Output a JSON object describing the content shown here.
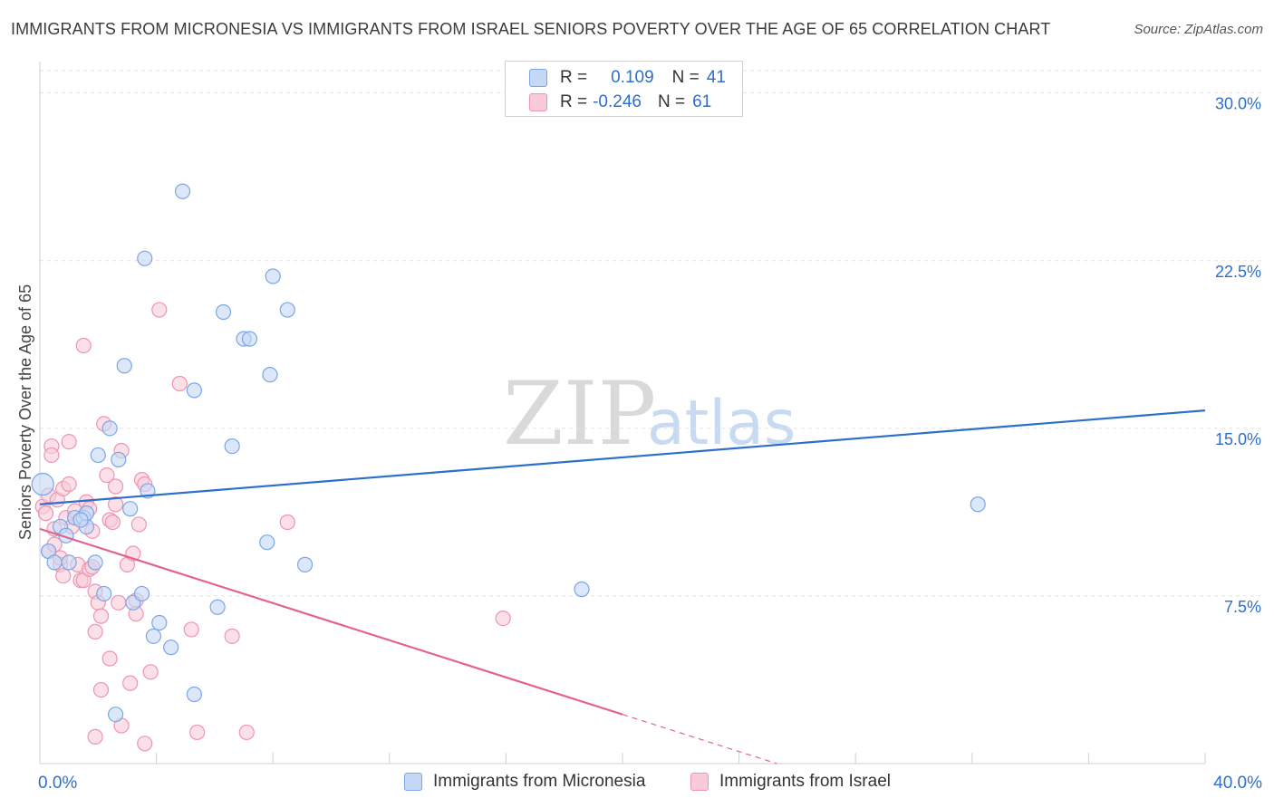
{
  "title": "IMMIGRANTS FROM MICRONESIA VS IMMIGRANTS FROM ISRAEL SENIORS POVERTY OVER THE AGE OF 65 CORRELATION CHART",
  "source": "Source: ZipAtlas.com",
  "watermark": {
    "zip": "ZIP",
    "atlas": "atlas"
  },
  "colors": {
    "blue_fill": "#c5d8f6",
    "blue_stroke": "#7aa6e6",
    "blue_line": "#2d6fca",
    "pink_fill": "#f9cbd9",
    "pink_stroke": "#ee94b1",
    "pink_line": "#e3638e",
    "tick_label": "#2d6fca",
    "grid": "#e2e2e2"
  },
  "stats": [
    {
      "r_label": "R =",
      "r_value": "0.109",
      "n_label": "N =",
      "n_value": "41"
    },
    {
      "r_label": "R =",
      "r_value": "-0.246",
      "n_label": "N =",
      "n_value": "61"
    }
  ],
  "chart_data": {
    "type": "scatter",
    "title": "IMMIGRANTS FROM MICRONESIA VS IMMIGRANTS FROM ISRAEL SENIORS POVERTY OVER THE AGE OF 65 CORRELATION CHART",
    "xlabel": "",
    "ylabel": "Seniors Poverty Over the Age of 65",
    "xlim": [
      0,
      40
    ],
    "ylim": [
      0,
      31
    ],
    "x_tick_labels": [
      "0.0%",
      "40.0%"
    ],
    "y_ticks": [
      7.5,
      15.0,
      22.5,
      30.0
    ],
    "y_tick_labels": [
      "7.5%",
      "15.0%",
      "22.5%",
      "30.0%"
    ],
    "grid": true,
    "legend_position": "bottom",
    "series": [
      {
        "name": "Immigrants from Micronesia",
        "color": "#7aa6e6",
        "trend": {
          "x": [
            0,
            40
          ],
          "y": [
            11.6,
            15.8
          ]
        },
        "points": [
          [
            0.1,
            12.5
          ],
          [
            0.3,
            9.5
          ],
          [
            0.5,
            9.0
          ],
          [
            0.7,
            10.6
          ],
          [
            0.9,
            10.2
          ],
          [
            1.0,
            9.0
          ],
          [
            1.2,
            11.0
          ],
          [
            1.5,
            11.0
          ],
          [
            1.6,
            10.6
          ],
          [
            1.6,
            11.2
          ],
          [
            1.9,
            9.0
          ],
          [
            2.0,
            13.8
          ],
          [
            2.2,
            7.6
          ],
          [
            2.4,
            15.0
          ],
          [
            2.6,
            2.2
          ],
          [
            2.7,
            13.6
          ],
          [
            2.9,
            17.8
          ],
          [
            3.1,
            11.4
          ],
          [
            3.2,
            7.2
          ],
          [
            3.5,
            7.6
          ],
          [
            3.7,
            12.2
          ],
          [
            3.6,
            22.6
          ],
          [
            3.9,
            5.7
          ],
          [
            4.1,
            6.3
          ],
          [
            4.5,
            5.2
          ],
          [
            4.9,
            25.6
          ],
          [
            5.3,
            16.7
          ],
          [
            5.3,
            3.1
          ],
          [
            6.1,
            7.0
          ],
          [
            6.3,
            20.2
          ],
          [
            6.6,
            14.2
          ],
          [
            7.0,
            19.0
          ],
          [
            7.2,
            19.0
          ],
          [
            7.8,
            9.9
          ],
          [
            7.9,
            17.4
          ],
          [
            8.0,
            21.8
          ],
          [
            8.5,
            20.3
          ],
          [
            9.1,
            8.9
          ],
          [
            18.6,
            7.8
          ],
          [
            32.2,
            11.6
          ],
          [
            1.4,
            10.9
          ]
        ]
      },
      {
        "name": "Immigrants from Israel",
        "color": "#ee94b1",
        "trend": {
          "x": [
            0,
            20.0
          ],
          "y": [
            10.5,
            2.2
          ]
        },
        "trend_dashed": {
          "x": [
            20.0,
            25.3
          ],
          "y": [
            2.2,
            0.0
          ]
        },
        "points": [
          [
            0.1,
            11.5
          ],
          [
            0.2,
            11.2
          ],
          [
            0.3,
            12.0
          ],
          [
            0.3,
            9.5
          ],
          [
            0.4,
            14.2
          ],
          [
            0.4,
            13.8
          ],
          [
            0.5,
            10.5
          ],
          [
            0.5,
            9.8
          ],
          [
            0.6,
            11.8
          ],
          [
            0.7,
            8.9
          ],
          [
            0.7,
            9.2
          ],
          [
            0.8,
            12.3
          ],
          [
            0.8,
            8.4
          ],
          [
            0.9,
            11.0
          ],
          [
            1.0,
            12.5
          ],
          [
            1.0,
            14.4
          ],
          [
            1.1,
            10.6
          ],
          [
            1.2,
            11.3
          ],
          [
            1.3,
            8.9
          ],
          [
            1.4,
            8.2
          ],
          [
            1.5,
            8.2
          ],
          [
            1.5,
            18.7
          ],
          [
            1.6,
            11.7
          ],
          [
            1.7,
            11.4
          ],
          [
            1.7,
            8.7
          ],
          [
            1.8,
            10.4
          ],
          [
            1.8,
            8.8
          ],
          [
            1.9,
            7.7
          ],
          [
            1.9,
            5.9
          ],
          [
            1.9,
            1.2
          ],
          [
            2.0,
            7.2
          ],
          [
            2.1,
            6.6
          ],
          [
            2.1,
            3.3
          ],
          [
            2.2,
            15.2
          ],
          [
            2.3,
            12.9
          ],
          [
            2.4,
            10.9
          ],
          [
            2.4,
            4.7
          ],
          [
            2.5,
            10.8
          ],
          [
            2.6,
            12.4
          ],
          [
            2.6,
            11.6
          ],
          [
            2.7,
            7.2
          ],
          [
            2.8,
            14.0
          ],
          [
            2.8,
            1.7
          ],
          [
            3.0,
            8.9
          ],
          [
            3.1,
            3.6
          ],
          [
            3.2,
            9.4
          ],
          [
            3.3,
            7.3
          ],
          [
            3.3,
            6.7
          ],
          [
            3.4,
            10.7
          ],
          [
            3.5,
            12.7
          ],
          [
            3.6,
            12.5
          ],
          [
            3.8,
            4.1
          ],
          [
            3.6,
            0.9
          ],
          [
            4.1,
            20.3
          ],
          [
            4.8,
            17.0
          ],
          [
            5.2,
            6.0
          ],
          [
            5.4,
            1.4
          ],
          [
            6.6,
            5.7
          ],
          [
            7.1,
            1.4
          ],
          [
            8.5,
            10.8
          ],
          [
            15.9,
            6.5
          ]
        ]
      }
    ]
  }
}
